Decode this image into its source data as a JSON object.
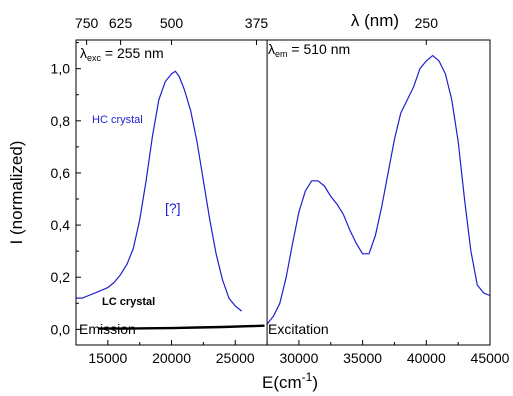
{
  "chart_data": {
    "type": "line",
    "xlabel": "E(cm",
    "xlabel_sup": "-1",
    "xlabel_close": ")",
    "ylabel": "I (normalized)",
    "top_axis_label": "λ (nm)",
    "xlim": [
      12500,
      45000
    ],
    "ylim": [
      -0.06,
      1.11
    ],
    "x_ticks": [
      15000,
      20000,
      25000,
      30000,
      35000,
      40000,
      45000
    ],
    "y_ticks": [
      0.0,
      0.2,
      0.4,
      0.6,
      0.8,
      1.0
    ],
    "x_tick_labels": [
      "15000",
      "20000",
      "25000",
      "30000",
      "35000",
      "40000",
      "45000"
    ],
    "y_tick_labels": [
      "0,0",
      "0,2",
      "0,4",
      "0,6",
      "0,8",
      "1,0"
    ],
    "top_ticks": [
      {
        "label": "750",
        "at": 13333
      },
      {
        "label": "625",
        "at": 16000
      },
      {
        "label": "500",
        "at": 20000
      },
      {
        "label": "375",
        "at": 26667
      },
      {
        "label": "250",
        "at": 40000
      }
    ],
    "divider_x": 27500,
    "annotations": {
      "exc": {
        "prefix": "λ",
        "sub": "exc",
        "suffix": "= 255 nm"
      },
      "em": {
        "prefix": "λ",
        "sub": "em",
        "suffix": "= 510 nm"
      },
      "hc_label": "HC crystal",
      "question": "[?]",
      "lc_label": "LC crystal",
      "emission": "Emission",
      "excitation": "Excitation"
    },
    "series": [
      {
        "name": "HC crystal",
        "color": "#1f1fd0",
        "x": [
          12500,
          13000,
          13500,
          14000,
          14500,
          15000,
          15500,
          16000,
          16500,
          17000,
          17500,
          18000,
          18500,
          19000,
          19500,
          20000,
          20300,
          20600,
          21000,
          21500,
          22000,
          22500,
          23000,
          23500,
          24000,
          24500,
          25000,
          25500
        ],
        "y": [
          0.12,
          0.12,
          0.13,
          0.14,
          0.15,
          0.16,
          0.18,
          0.21,
          0.25,
          0.31,
          0.42,
          0.57,
          0.74,
          0.88,
          0.95,
          0.98,
          0.99,
          0.97,
          0.92,
          0.84,
          0.72,
          0.57,
          0.42,
          0.29,
          0.19,
          0.12,
          0.09,
          0.07
        ]
      },
      {
        "name": "LC crystal",
        "color": "#000000",
        "x": [
          14300,
          16000,
          18000,
          20000,
          22000,
          24000,
          26000,
          27300
        ],
        "y": [
          0.003,
          0.003,
          0.004,
          0.005,
          0.007,
          0.009,
          0.012,
          0.014
        ]
      },
      {
        "name": "Excitation",
        "color": "#1f1fd0",
        "x": [
          27500,
          28000,
          28500,
          29000,
          29500,
          30000,
          30500,
          31000,
          31500,
          32000,
          32500,
          33000,
          33500,
          34000,
          34500,
          35000,
          35500,
          36000,
          36500,
          37000,
          37500,
          38000,
          38500,
          39000,
          39500,
          40000,
          40500,
          41000,
          41500,
          42000,
          42500,
          43000,
          43500,
          44000,
          44500,
          45000
        ],
        "y": [
          0.02,
          0.05,
          0.1,
          0.2,
          0.33,
          0.45,
          0.53,
          0.57,
          0.57,
          0.55,
          0.51,
          0.48,
          0.44,
          0.38,
          0.33,
          0.29,
          0.29,
          0.36,
          0.47,
          0.6,
          0.73,
          0.83,
          0.88,
          0.93,
          1.0,
          1.03,
          1.05,
          1.03,
          0.98,
          0.88,
          0.72,
          0.5,
          0.3,
          0.17,
          0.14,
          0.13
        ]
      }
    ]
  }
}
